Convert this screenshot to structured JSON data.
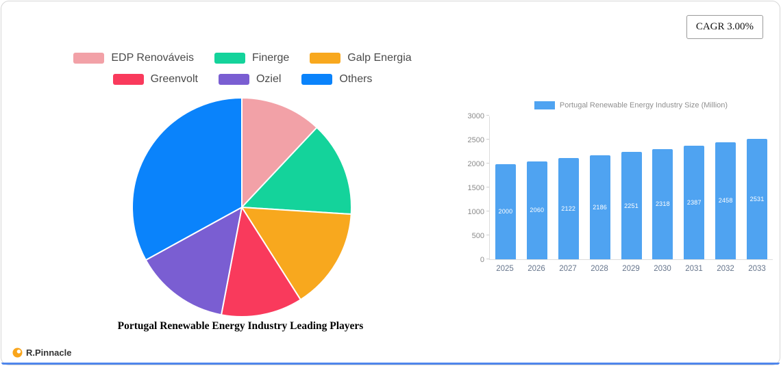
{
  "cagr_badge": "CAGR 3.00%",
  "brand": {
    "name": "R.Pinnacle",
    "icon_color": "#F9A51B"
  },
  "accent_color": "#4f86ec",
  "chart_data": [
    {
      "type": "pie",
      "title": "Portugal Renewable Energy Industry Leading Players",
      "labels": [
        "EDP Renováveis",
        "Finerge",
        "Galp Energia",
        "Greenvolt",
        "Oziel",
        "Others"
      ],
      "values": [
        12,
        14,
        15,
        12,
        14,
        33
      ],
      "colors": [
        "#F2A1A7",
        "#14D39B",
        "#F8A81E",
        "#F93A5C",
        "#7A5ED2",
        "#0A83FB"
      ],
      "legend_position": "top",
      "slice_stroke": "#ffffff"
    },
    {
      "type": "bar",
      "title": "Portugal Renewable Energy Industry Size (Million)",
      "categories": [
        "2025",
        "2026",
        "2027",
        "2028",
        "2029",
        "2030",
        "2031",
        "2032",
        "2033"
      ],
      "values": [
        2000,
        2060,
        2122,
        2186,
        2251,
        2318,
        2387,
        2458,
        2531
      ],
      "bar_color": "#4FA3F1",
      "value_label_color": "#ffffff",
      "ylim": [
        0,
        3000
      ],
      "yticks": [
        0,
        500,
        1000,
        1500,
        2000,
        2500,
        3000
      ],
      "legend_position": "top",
      "grid": false
    }
  ]
}
